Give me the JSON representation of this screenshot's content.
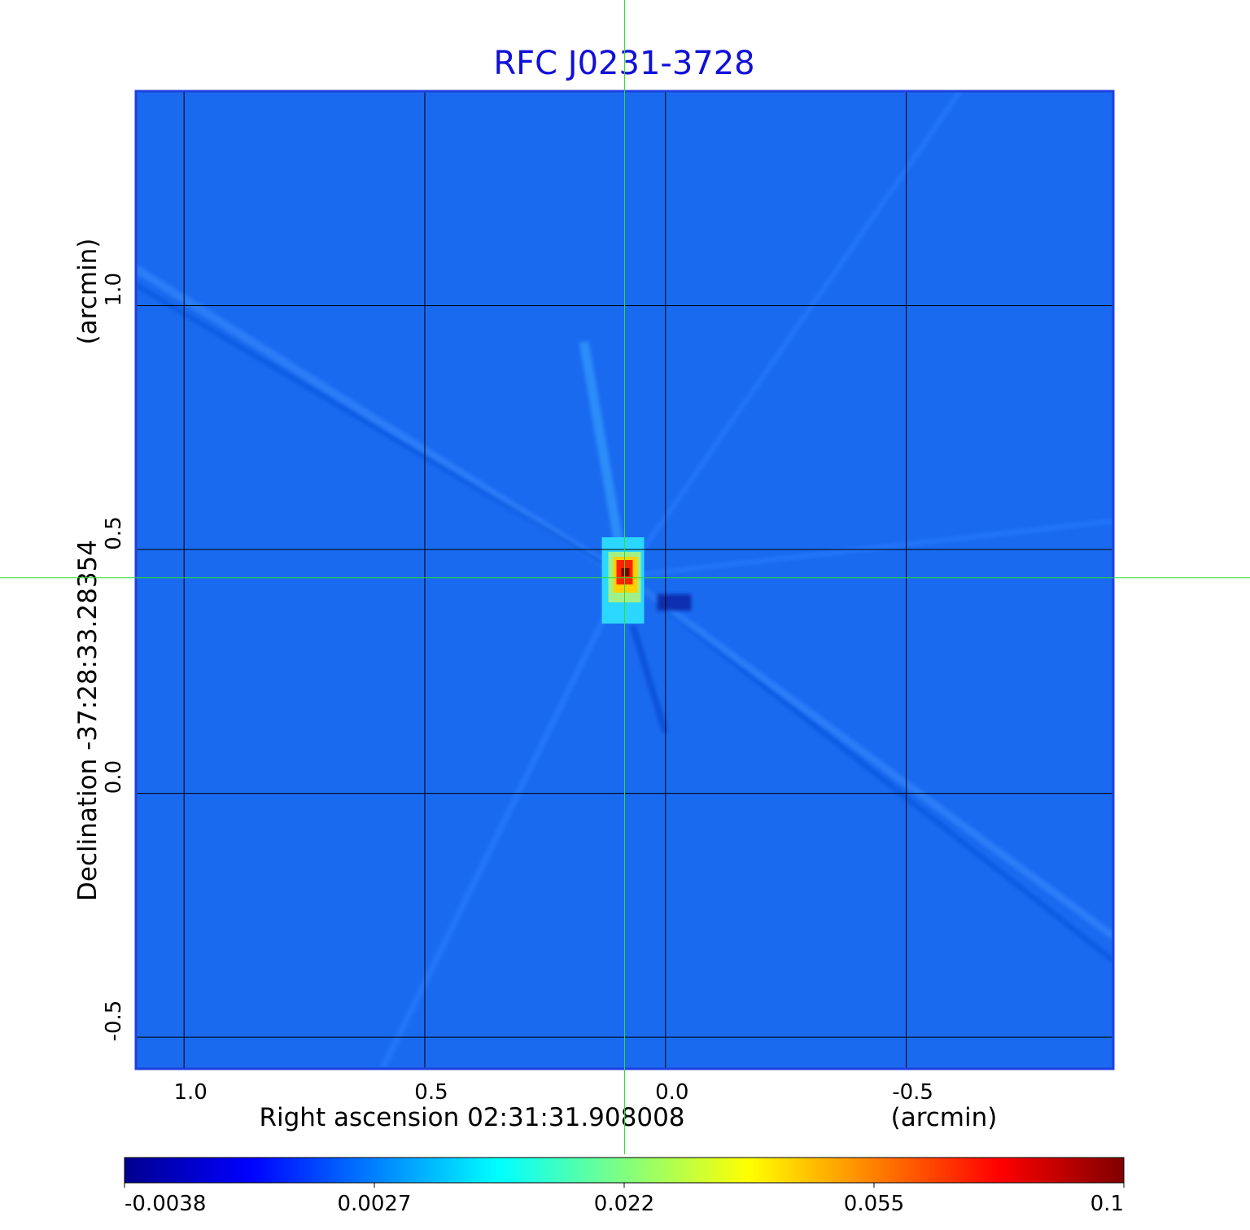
{
  "chart_data": {
    "type": "heatmap",
    "title": "RFC J0231-3728",
    "xlabel": "Right ascension  02:31:31.908008",
    "xlabel_unit": "(arcmin)",
    "ylabel": "Declination  -37:28:33.28354",
    "ylabel_unit": "(arcmin)",
    "xlim": [
      1.1,
      -0.93
    ],
    "ylim": [
      -0.565,
      1.44
    ],
    "x_ticks": [
      {
        "value": 1.0,
        "label": "1.0"
      },
      {
        "value": 0.5,
        "label": "0.5"
      },
      {
        "value": 0.0,
        "label": "0.0"
      },
      {
        "value": -0.5,
        "label": "-0.5"
      }
    ],
    "y_ticks": [
      {
        "value": 1.0,
        "label": "1.0"
      },
      {
        "value": 0.5,
        "label": "0.5"
      },
      {
        "value": 0.0,
        "label": "0.0"
      },
      {
        "value": -0.5,
        "label": "-0.5"
      }
    ],
    "grid": true,
    "crosshair": {
      "x": 0.085,
      "y": 0.442,
      "color": "#33dd33"
    },
    "colorbar": {
      "ticks": [
        "-0.0038",
        "0.0027",
        "0.022",
        "0.055",
        "0.1"
      ],
      "colors": [
        "#00008f",
        "#0000ff",
        "#0080ff",
        "#00ffff",
        "#80ff80",
        "#ffff00",
        "#ff8000",
        "#ff0000",
        "#800000"
      ]
    },
    "background_color": "#1a6af0",
    "peak": {
      "x": 0.085,
      "y": 0.445,
      "value": 0.1
    }
  }
}
